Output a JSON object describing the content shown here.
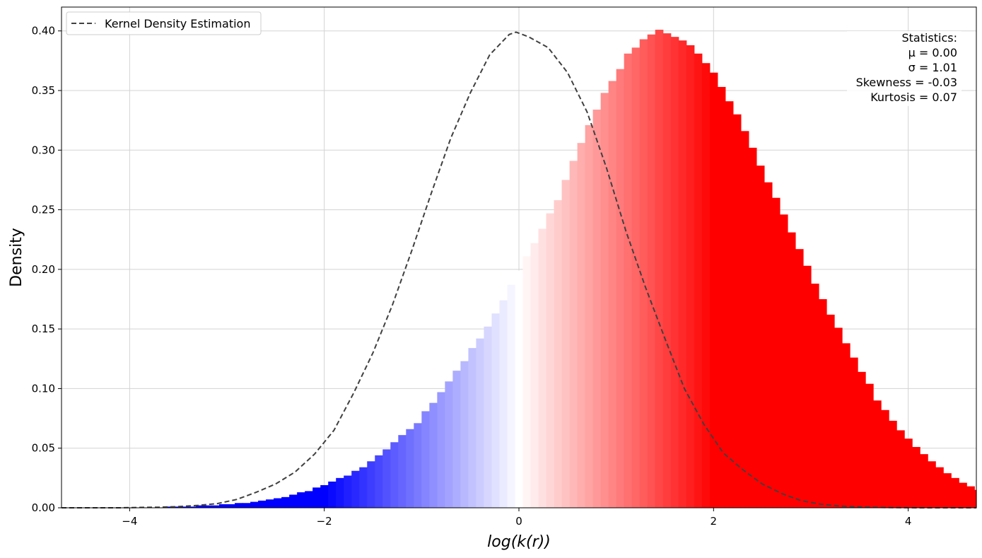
{
  "chart_data": {
    "type": "bar",
    "subtype": "histogram with kernel density estimate",
    "xlabel": "log(k(r))",
    "ylabel": "Density",
    "xlim": [
      -4.7,
      4.7
    ],
    "ylim": [
      0,
      0.42
    ],
    "x_ticks": [
      -4,
      -2,
      0,
      2,
      4
    ],
    "x_tick_labels": [
      "−4",
      "−2",
      "0",
      "2",
      "4"
    ],
    "y_ticks": [
      0,
      0.05,
      0.1,
      0.15,
      0.2,
      0.25,
      0.3,
      0.35,
      0.4
    ],
    "y_tick_labels": [
      "0.00",
      "0.05",
      "0.10",
      "0.15",
      "0.20",
      "0.25",
      "0.30",
      "0.35",
      "0.40"
    ],
    "grid": true,
    "bin_width": 0.08,
    "color_scale": {
      "low": "#0000ff",
      "mid": "#ffffff",
      "high": "#ff0000",
      "range": [
        -2.0,
        2.0
      ]
    },
    "histogram": {
      "x_start": -4.6,
      "densities": [
        0,
        0,
        0,
        0,
        0,
        0,
        0,
        0,
        0,
        0,
        0,
        0,
        0.001,
        0.001,
        0.001,
        0.001,
        0.002,
        0.002,
        0.002,
        0.003,
        0.003,
        0.004,
        0.004,
        0.005,
        0.006,
        0.007,
        0.008,
        0.009,
        0.011,
        0.013,
        0.014,
        0.017,
        0.019,
        0.022,
        0.025,
        0.027,
        0.031,
        0.034,
        0.039,
        0.044,
        0.049,
        0.055,
        0.061,
        0.066,
        0.071,
        0.081,
        0.088,
        0.097,
        0.106,
        0.115,
        0.123,
        0.134,
        0.142,
        0.152,
        0.163,
        0.174,
        0.187,
        0.199,
        0.211,
        0.222,
        0.234,
        0.247,
        0.258,
        0.275,
        0.291,
        0.306,
        0.321,
        0.334,
        0.348,
        0.358,
        0.368,
        0.381,
        0.386,
        0.393,
        0.397,
        0.401,
        0.398,
        0.395,
        0.392,
        0.388,
        0.381,
        0.373,
        0.365,
        0.353,
        0.341,
        0.33,
        0.316,
        0.302,
        0.287,
        0.273,
        0.26,
        0.246,
        0.231,
        0.217,
        0.203,
        0.188,
        0.175,
        0.162,
        0.151,
        0.138,
        0.126,
        0.114,
        0.104,
        0.09,
        0.082,
        0.073,
        0.065,
        0.058,
        0.051,
        0.045,
        0.039,
        0.034,
        0.029,
        0.025,
        0.021,
        0.018,
        0.015,
        0.012,
        0.01,
        0.008,
        0.006,
        0.005,
        0.004,
        0.003,
        0.002,
        0.002,
        0.001,
        0.001,
        0.001,
        0.001,
        0,
        0,
        0,
        0,
        0,
        0,
        0,
        0,
        0,
        0,
        0,
        0,
        0,
        0,
        0,
        0
      ]
    },
    "series": [
      {
        "name": "Kernel Density Estimation",
        "style": "dashed",
        "color": "#404040",
        "x": [
          -4.7,
          -4.5,
          -4.3,
          -4.1,
          -3.9,
          -3.7,
          -3.5,
          -3.3,
          -3.1,
          -2.9,
          -2.7,
          -2.5,
          -2.3,
          -2.1,
          -1.9,
          -1.7,
          -1.5,
          -1.3,
          -1.1,
          -0.9,
          -0.7,
          -0.5,
          -0.3,
          -0.1,
          -0.03,
          0.1,
          0.3,
          0.5,
          0.7,
          0.9,
          1.1,
          1.3,
          1.5,
          1.7,
          1.9,
          2.1,
          2.3,
          2.5,
          2.7,
          2.9,
          3.1,
          3.3,
          3.5,
          3.7,
          3.9,
          4.1,
          4.3,
          4.5,
          4.7
        ],
        "y": [
          0,
          0,
          0,
          0,
          0.0003,
          0.0005,
          0.001,
          0.002,
          0.0035,
          0.007,
          0.013,
          0.02,
          0.03,
          0.045,
          0.065,
          0.096,
          0.13,
          0.17,
          0.216,
          0.264,
          0.31,
          0.348,
          0.38,
          0.397,
          0.399,
          0.395,
          0.386,
          0.365,
          0.332,
          0.285,
          0.232,
          0.185,
          0.142,
          0.1,
          0.07,
          0.046,
          0.032,
          0.02,
          0.012,
          0.006,
          0.003,
          0.0015,
          0.0007,
          0.0003,
          0.0001,
          0,
          0,
          0,
          0
        ]
      }
    ],
    "legend": {
      "position": "top-left",
      "entries": [
        "Kernel Density Estimation"
      ]
    },
    "stats_box": {
      "position": "top-right",
      "lines": [
        "Statistics:",
        "μ = 0.00",
        "σ = 1.01",
        "Skewness = -0.03",
        "Kurtosis = 0.07"
      ]
    }
  }
}
